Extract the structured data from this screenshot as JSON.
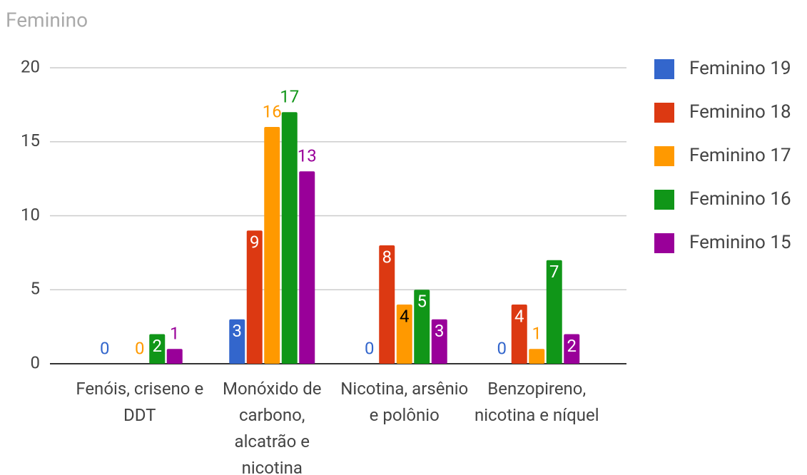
{
  "chart_data": {
    "type": "bar",
    "title": "Feminino",
    "categories": [
      "Fenóis, criseno e DDT",
      "Monóxido de carbono, alcatrão e nicotina",
      "Nicotina, arsênio e polônio",
      "Benzopireno, nicotina e níquel"
    ],
    "series": [
      {
        "name": "Feminino 19",
        "color": "#3366cc",
        "values": [
          0,
          3,
          0,
          0
        ]
      },
      {
        "name": "Feminino 18",
        "color": "#dc3912",
        "values": [
          null,
          9,
          8,
          4
        ]
      },
      {
        "name": "Feminino 17",
        "color": "#ff9900",
        "values": [
          0,
          16,
          4,
          1
        ]
      },
      {
        "name": "Feminino 16",
        "color": "#109618",
        "values": [
          2,
          17,
          5,
          7
        ]
      },
      {
        "name": "Feminino 15",
        "color": "#990099",
        "values": [
          1,
          13,
          3,
          2
        ]
      }
    ],
    "ylim": [
      0,
      20
    ],
    "yticks": [
      0,
      5,
      10,
      15,
      20
    ],
    "grid": true,
    "legend": "right"
  }
}
